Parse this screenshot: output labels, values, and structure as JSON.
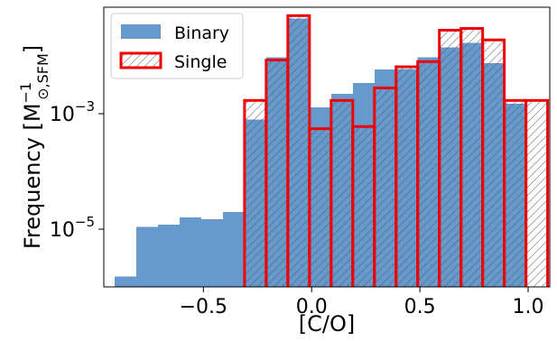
{
  "chart_data": {
    "type": "bar",
    "xlabel": "[C/O]",
    "ylabel": "Frequency [M⊙,SFM⁻¹]",
    "ylabel_parts": {
      "main": "Frequency [M",
      "sub": "⊙,SFM",
      "sup": "−1",
      "close": "]"
    },
    "yscale": "log",
    "xlim": [
      -0.96,
      1.1
    ],
    "ylim": [
      1e-06,
      0.07
    ],
    "x_ticks": [
      {
        "value": -0.5,
        "label": "−0.5"
      },
      {
        "value": 0.0,
        "label": "0.0"
      },
      {
        "value": 0.5,
        "label": "0.5"
      },
      {
        "value": 1.0,
        "label": "1.0"
      }
    ],
    "y_ticks": [
      {
        "value": 1e-05,
        "base": "10",
        "exp": "−5"
      },
      {
        "value": 0.001,
        "base": "10",
        "exp": "−3"
      }
    ],
    "legend_position": "upper-left",
    "series": [
      {
        "name": "Binary",
        "style": "filled",
        "color": "#6699cc",
        "bin_edges": [
          -0.91,
          -0.81,
          -0.71,
          -0.61,
          -0.51,
          -0.41,
          -0.31,
          -0.21,
          -0.11,
          -0.01,
          0.09,
          0.19,
          0.29,
          0.39,
          0.49,
          0.59,
          0.69,
          0.79,
          0.89,
          0.99
        ],
        "values": [
          1.5e-06,
          1.1e-05,
          1.2e-05,
          1.6e-05,
          1.5e-05,
          2e-05,
          0.0008,
          0.0095,
          0.045,
          0.0013,
          0.0022,
          0.0034,
          0.0058,
          0.006,
          0.0095,
          0.014,
          0.017,
          0.0075,
          0.0015
        ]
      },
      {
        "name": "Single",
        "style": "hatched",
        "color": "#ee0000",
        "bin_edges": [
          -0.31,
          -0.21,
          -0.11,
          -0.01,
          0.09,
          0.19,
          0.29,
          0.39,
          0.49,
          0.59,
          0.69,
          0.79,
          0.89,
          0.99,
          1.09
        ],
        "values": [
          0.0017,
          0.0085,
          0.05,
          0.00055,
          0.0017,
          0.0006,
          0.0028,
          0.0065,
          0.008,
          0.028,
          0.03,
          0.019,
          0.0017,
          0.0017
        ]
      }
    ]
  }
}
